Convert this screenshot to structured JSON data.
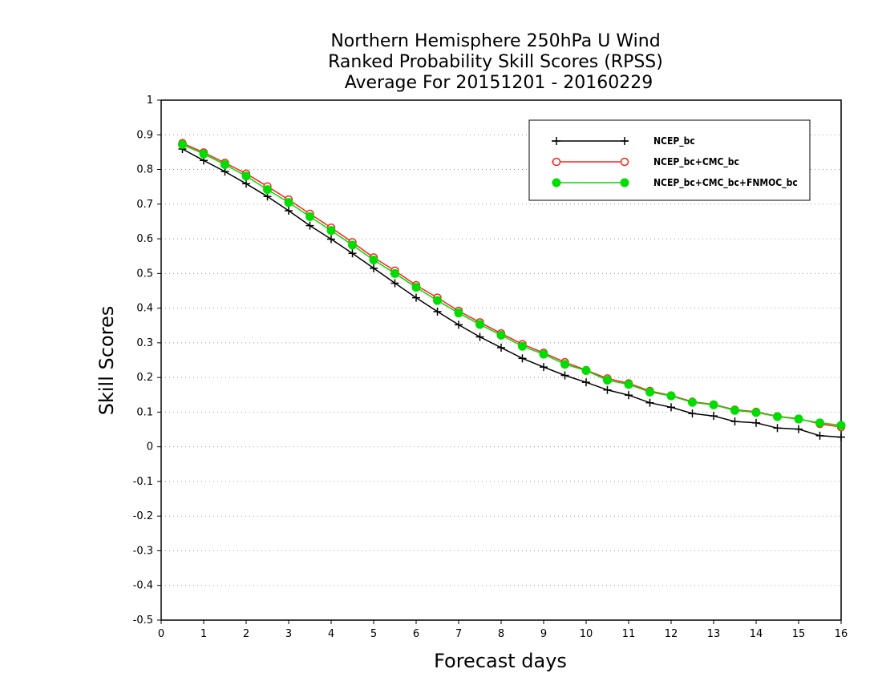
{
  "chart_data": {
    "type": "line",
    "title": [
      "Northern Hemisphere 250hPa U Wind",
      "Ranked Probability Skill Scores (RPSS)",
      "Average For 20151201 - 20160229"
    ],
    "xlabel": "Forecast days",
    "ylabel": "Skill Scores",
    "xlim": [
      0,
      16
    ],
    "ylim": [
      -0.5,
      1
    ],
    "xticks": [
      "0",
      "1",
      "2",
      "3",
      "4",
      "5",
      "6",
      "7",
      "8",
      "9",
      "10",
      "11",
      "12",
      "13",
      "14",
      "15",
      "16"
    ],
    "yticks": [
      "1",
      "0.9",
      "0.8",
      "0.7",
      "0.6",
      "0.5",
      "0.4",
      "0.3",
      "0.2",
      "0.1",
      "0",
      "-0.1",
      "-0.2",
      "-0.3",
      "-0.4",
      "-0.5"
    ],
    "grid": "dotted horizontal",
    "legend_position": "top-right",
    "x": [
      0.5,
      1,
      1.5,
      2,
      2.5,
      3,
      3.5,
      4,
      4.5,
      5,
      5.5,
      6,
      6.5,
      7,
      7.5,
      8,
      8.5,
      9,
      9.5,
      10,
      10.5,
      11,
      11.5,
      12,
      12.5,
      13,
      13.5,
      14,
      14.5,
      15,
      15.5,
      16
    ],
    "series": [
      {
        "name": "NCEP_bc",
        "color": "#000000",
        "marker": "plus",
        "values": [
          0.859,
          0.826,
          0.794,
          0.759,
          0.722,
          0.681,
          0.638,
          0.599,
          0.558,
          0.515,
          0.472,
          0.43,
          0.39,
          0.352,
          0.317,
          0.286,
          0.255,
          0.23,
          0.206,
          0.186,
          0.164,
          0.149,
          0.127,
          0.114,
          0.096,
          0.089,
          0.073,
          0.069,
          0.054,
          0.051,
          0.032,
          0.028
        ]
      },
      {
        "name": "NCEP_bc+CMC_bc",
        "color": "#ff2020",
        "marker": "open-circle",
        "values": [
          0.876,
          0.849,
          0.819,
          0.788,
          0.751,
          0.713,
          0.672,
          0.632,
          0.59,
          0.546,
          0.508,
          0.466,
          0.43,
          0.392,
          0.359,
          0.327,
          0.296,
          0.271,
          0.244,
          0.221,
          0.197,
          0.183,
          0.161,
          0.148,
          0.13,
          0.122,
          0.107,
          0.101,
          0.088,
          0.081,
          0.066,
          0.057
        ]
      },
      {
        "name": "NCEP_bc+CMC_bc+FNMOC_bc",
        "color": "#00dd00",
        "marker": "filled-circle",
        "values": [
          0.872,
          0.845,
          0.814,
          0.781,
          0.742,
          0.705,
          0.664,
          0.624,
          0.582,
          0.539,
          0.5,
          0.46,
          0.422,
          0.386,
          0.353,
          0.322,
          0.29,
          0.267,
          0.238,
          0.22,
          0.192,
          0.18,
          0.158,
          0.147,
          0.128,
          0.121,
          0.105,
          0.099,
          0.087,
          0.08,
          0.069,
          0.062
        ]
      }
    ]
  }
}
